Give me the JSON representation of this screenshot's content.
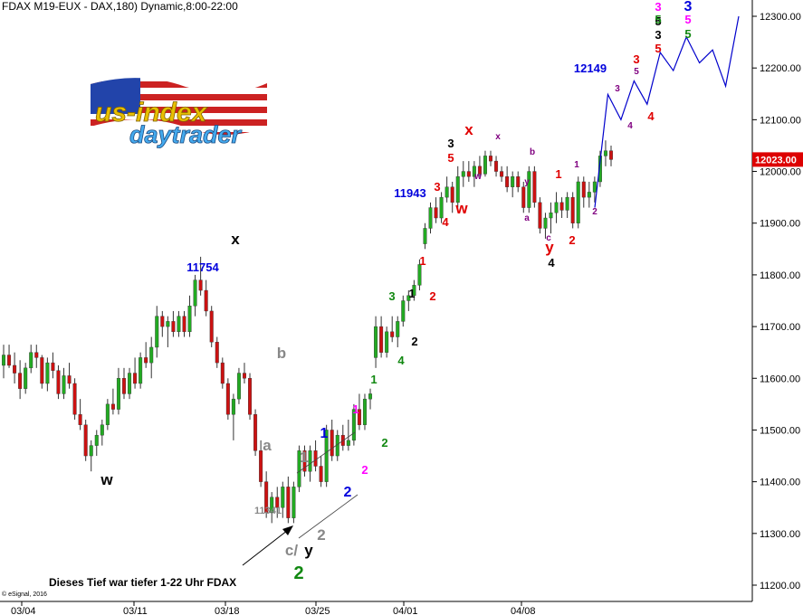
{
  "header": {
    "title": "FDAX M19-EUX - DAX,180) Dynamic,8:00-22:00"
  },
  "logo": {
    "line1": "us-index",
    "line2": "daytrader"
  },
  "footer": {
    "copyright": "© eSignal, 2016",
    "note": "Dieses Tief war tiefer 1-22 Uhr FDAX"
  },
  "colors": {
    "up": "#22aa22",
    "down": "#cc1111",
    "wick": "#333333",
    "forecast": "#0000cc",
    "price_box": "#dd0000",
    "red": "#e00000",
    "green": "#118811",
    "blue": "#0000dd",
    "magenta": "#ff00ff",
    "purple": "#800080",
    "gray": "#888888",
    "black": "#000000"
  },
  "chart_data": {
    "type": "candlestick",
    "ylim": [
      11200,
      12300
    ],
    "y_ticks": [
      "11200.00",
      "11300.00",
      "11400.00",
      "11500.00",
      "11600.00",
      "11700.00",
      "11800.00",
      "11900.00",
      "12000.00",
      "12100.00",
      "12200.00",
      "12300.00"
    ],
    "x_ticks": [
      "03/04",
      "03/11",
      "03/18",
      "03/25",
      "04/01",
      "04/08"
    ],
    "last_price": "12023.00",
    "candles": [
      [
        11625,
        11665,
        11600,
        11645
      ],
      [
        11645,
        11665,
        11620,
        11625
      ],
      [
        11625,
        11650,
        11590,
        11610
      ],
      [
        11610,
        11635,
        11560,
        11580
      ],
      [
        11580,
        11630,
        11570,
        11620
      ],
      [
        11620,
        11665,
        11610,
        11650
      ],
      [
        11650,
        11665,
        11620,
        11640
      ],
      [
        11640,
        11645,
        11580,
        11590
      ],
      [
        11590,
        11640,
        11575,
        11630
      ],
      [
        11630,
        11650,
        11600,
        11615
      ],
      [
        11615,
        11625,
        11560,
        11570
      ],
      [
        11570,
        11620,
        11560,
        11605
      ],
      [
        11605,
        11630,
        11580,
        11590
      ],
      [
        11590,
        11600,
        11520,
        11530
      ],
      [
        11530,
        11560,
        11500,
        11510
      ],
      [
        11510,
        11520,
        11440,
        11450
      ],
      [
        11450,
        11480,
        11420,
        11470
      ],
      [
        11470,
        11500,
        11450,
        11490
      ],
      [
        11490,
        11520,
        11470,
        11510
      ],
      [
        11510,
        11560,
        11500,
        11550
      ],
      [
        11550,
        11580,
        11530,
        11540
      ],
      [
        11540,
        11620,
        11530,
        11600
      ],
      [
        11600,
        11620,
        11560,
        11570
      ],
      [
        11570,
        11620,
        11560,
        11610
      ],
      [
        11610,
        11640,
        11580,
        11590
      ],
      [
        11590,
        11650,
        11580,
        11640
      ],
      [
        11640,
        11670,
        11620,
        11630
      ],
      [
        11630,
        11680,
        11600,
        11660
      ],
      [
        11660,
        11740,
        11640,
        11720
      ],
      [
        11720,
        11730,
        11680,
        11700
      ],
      [
        11700,
        11720,
        11660,
        11710
      ],
      [
        11710,
        11730,
        11680,
        11690
      ],
      [
        11690,
        11730,
        11680,
        11720
      ],
      [
        11720,
        11730,
        11680,
        11690
      ],
      [
        11690,
        11760,
        11680,
        11740
      ],
      [
        11740,
        11800,
        11720,
        11790
      ],
      [
        11790,
        11835,
        11760,
        11770
      ],
      [
        11770,
        11790,
        11720,
        11730
      ],
      [
        11730,
        11740,
        11660,
        11670
      ],
      [
        11670,
        11680,
        11620,
        11630
      ],
      [
        11630,
        11640,
        11580,
        11590
      ],
      [
        11590,
        11600,
        11520,
        11530
      ],
      [
        11530,
        11570,
        11480,
        11560
      ],
      [
        11560,
        11620,
        11550,
        11610
      ],
      [
        11610,
        11630,
        11590,
        11600
      ],
      [
        11600,
        11610,
        11520,
        11530
      ],
      [
        11530,
        11540,
        11450,
        11460
      ],
      [
        11460,
        11480,
        11390,
        11400
      ],
      [
        11400,
        11420,
        11330,
        11340
      ],
      [
        11340,
        11380,
        11320,
        11370
      ],
      [
        11370,
        11390,
        11330,
        11350
      ],
      [
        11350,
        11400,
        11330,
        11390
      ],
      [
        11390,
        11410,
        11320,
        11330
      ],
      [
        11330,
        11400,
        11320,
        11390
      ],
      [
        11390,
        11470,
        11380,
        11460
      ],
      [
        11460,
        11470,
        11410,
        11420
      ],
      [
        11420,
        11470,
        11400,
        11460
      ],
      [
        11460,
        11480,
        11420,
        11430
      ],
      [
        11430,
        11450,
        11390,
        11400
      ],
      [
        11400,
        11510,
        11390,
        11500
      ],
      [
        11500,
        11520,
        11440,
        11450
      ],
      [
        11450,
        11500,
        11440,
        11490
      ],
      [
        11490,
        11510,
        11460,
        11470
      ],
      [
        11470,
        11520,
        11460,
        11480
      ],
      [
        11480,
        11550,
        11470,
        11540
      ],
      [
        11540,
        11570,
        11500,
        11510
      ],
      [
        11510,
        11570,
        11500,
        11560
      ],
      [
        11560,
        11580,
        11540,
        11570
      ],
      [
        11640,
        11720,
        11620,
        11700
      ],
      [
        11700,
        11720,
        11640,
        11650
      ],
      [
        11650,
        11700,
        11640,
        11690
      ],
      [
        11690,
        11720,
        11670,
        11680
      ],
      [
        11680,
        11720,
        11660,
        11710
      ],
      [
        11710,
        11760,
        11700,
        11750
      ],
      [
        11750,
        11770,
        11730,
        11760
      ],
      [
        11760,
        11790,
        11750,
        11780
      ],
      [
        11780,
        11830,
        11770,
        11820
      ],
      [
        11860,
        11900,
        11850,
        11890
      ],
      [
        11890,
        11940,
        11880,
        11930
      ],
      [
        11930,
        11950,
        11900,
        11910
      ],
      [
        11910,
        11960,
        11900,
        11950
      ],
      [
        11950,
        11990,
        11940,
        11970
      ],
      [
        11970,
        11980,
        11920,
        11940
      ],
      [
        11940,
        12010,
        11930,
        11990
      ],
      [
        11990,
        12020,
        11970,
        12000
      ],
      [
        12000,
        12020,
        11980,
        11990
      ],
      [
        11990,
        12020,
        11970,
        12010
      ],
      [
        12010,
        12030,
        11990,
        11995
      ],
      [
        11995,
        12040,
        11990,
        12030
      ],
      [
        12030,
        12040,
        12010,
        12020
      ],
      [
        12020,
        12030,
        11990,
        12000
      ],
      [
        12000,
        12010,
        11980,
        11990
      ],
      [
        11990,
        12010,
        11960,
        11970
      ],
      [
        11970,
        12000,
        11950,
        11990
      ],
      [
        11990,
        12000,
        11960,
        11970
      ],
      [
        11970,
        11980,
        11920,
        11930
      ],
      [
        11930,
        12010,
        11920,
        12000
      ],
      [
        12000,
        12010,
        11930,
        11940
      ],
      [
        11940,
        11950,
        11880,
        11890
      ],
      [
        11890,
        11920,
        11870,
        11910
      ],
      [
        11910,
        11940,
        11880,
        11920
      ],
      [
        11920,
        11960,
        11900,
        11940
      ],
      [
        11940,
        11950,
        11910,
        11925
      ],
      [
        11925,
        11960,
        11910,
        11950
      ],
      [
        11950,
        11960,
        11890,
        11900
      ],
      [
        11900,
        11990,
        11890,
        11980
      ],
      [
        11980,
        11990,
        11930,
        11950
      ],
      [
        11950,
        11980,
        11930,
        11960
      ],
      [
        11960,
        11990,
        11940,
        11980
      ],
      [
        11980,
        12040,
        11970,
        12030
      ],
      [
        12030,
        12060,
        12010,
        12040
      ],
      [
        12040,
        12050,
        12010,
        12023
      ]
    ],
    "forecast": [
      [
        11930,
        0
      ],
      [
        12149,
        1
      ],
      [
        12100,
        2
      ],
      [
        12175,
        3
      ],
      [
        12130,
        4
      ],
      [
        12230,
        5
      ],
      [
        12195,
        6
      ],
      [
        12260,
        7
      ],
      [
        12210,
        8
      ],
      [
        12235,
        9
      ],
      [
        12165,
        10
      ],
      [
        12300,
        11
      ]
    ],
    "annotations": [
      {
        "t": "11754",
        "c": "blue",
        "x": 224,
        "y": 300
      },
      {
        "t": "x",
        "c": "black",
        "x": 260,
        "y": 270
      },
      {
        "t": "b",
        "c": "gray",
        "x": 311,
        "y": 396
      },
      {
        "t": "a",
        "c": "gray",
        "x": 295,
        "y": 498
      },
      {
        "t": "w",
        "c": "black",
        "x": 118,
        "y": 536
      },
      {
        "t": "1",
        "c": "gray",
        "x": 336,
        "y": 511
      },
      {
        "t": "11341",
        "c": "gray",
        "x": 296,
        "y": 568,
        "s": "small"
      },
      {
        "t": "2",
        "c": "gray",
        "x": 355,
        "y": 597
      },
      {
        "t": "c/",
        "c": "gray",
        "x": 322,
        "y": 614
      },
      {
        "t": "y",
        "c": "black",
        "x": 341,
        "y": 614
      },
      {
        "t": "2",
        "c": "green",
        "x": 330,
        "y": 640
      },
      {
        "t": "1",
        "c": "blue",
        "x": 358,
        "y": 484
      },
      {
        "t": "2",
        "c": "blue",
        "x": 384,
        "y": 549
      },
      {
        "t": "1",
        "c": "magenta",
        "x": 393,
        "y": 457
      },
      {
        "t": "2",
        "c": "magenta",
        "x": 403,
        "y": 524
      },
      {
        "t": "1",
        "c": "green",
        "x": 413,
        "y": 424
      },
      {
        "t": "2",
        "c": "green",
        "x": 425,
        "y": 494
      },
      {
        "t": "3",
        "c": "green",
        "x": 433,
        "y": 332
      },
      {
        "t": "4",
        "c": "green",
        "x": 443,
        "y": 403
      },
      {
        "t": "1",
        "c": "black",
        "x": 455,
        "y": 329
      },
      {
        "t": "2",
        "c": "black",
        "x": 458,
        "y": 382
      },
      {
        "t": "1",
        "c": "red",
        "x": 467,
        "y": 293
      },
      {
        "t": "2",
        "c": "red",
        "x": 478,
        "y": 332
      },
      {
        "t": "11943",
        "c": "blue",
        "x": 453,
        "y": 218
      },
      {
        "t": "3",
        "c": "red",
        "x": 483,
        "y": 211
      },
      {
        "t": "4",
        "c": "red",
        "x": 492,
        "y": 250
      },
      {
        "t": "3",
        "c": "black",
        "x": 498,
        "y": 163
      },
      {
        "t": "5",
        "c": "red",
        "x": 498,
        "y": 179
      },
      {
        "t": "w",
        "c": "red",
        "x": 510,
        "y": 236
      },
      {
        "t": "x",
        "c": "red",
        "x": 518,
        "y": 149
      },
      {
        "t": "w",
        "c": "purple",
        "x": 528,
        "y": 198,
        "s": "small"
      },
      {
        "t": "x",
        "c": "purple",
        "x": 550,
        "y": 154,
        "s": "small"
      },
      {
        "t": "b",
        "c": "purple",
        "x": 588,
        "y": 171,
        "s": "small"
      },
      {
        "t": "y",
        "c": "purple",
        "x": 582,
        "y": 204,
        "s": "small"
      },
      {
        "t": "a",
        "c": "purple",
        "x": 582,
        "y": 244,
        "s": "small"
      },
      {
        "t": "c",
        "c": "purple",
        "x": 606,
        "y": 266,
        "s": "small"
      },
      {
        "t": "y",
        "c": "red",
        "x": 607,
        "y": 279
      },
      {
        "t": "4",
        "c": "black",
        "x": 609,
        "y": 295
      },
      {
        "t": "1",
        "c": "red",
        "x": 617,
        "y": 197
      },
      {
        "t": "2",
        "c": "red",
        "x": 632,
        "y": 270
      },
      {
        "t": "1",
        "c": "purple",
        "x": 637,
        "y": 185,
        "s": "small"
      },
      {
        "t": "2",
        "c": "purple",
        "x": 657,
        "y": 237,
        "s": "small"
      },
      {
        "t": "12149",
        "c": "blue",
        "x": 652,
        "y": 80
      },
      {
        "t": "3",
        "c": "purple",
        "x": 682,
        "y": 101,
        "s": "small"
      },
      {
        "t": "4",
        "c": "purple",
        "x": 696,
        "y": 142,
        "s": "small"
      },
      {
        "t": "3",
        "c": "red",
        "x": 703,
        "y": 70
      },
      {
        "t": "5",
        "c": "purple",
        "x": 703,
        "y": 82,
        "s": "small"
      },
      {
        "t": "4",
        "c": "red",
        "x": 719,
        "y": 133
      },
      {
        "t": "3",
        "c": "black",
        "x": 727,
        "y": 43
      },
      {
        "t": "5",
        "c": "red",
        "x": 727,
        "y": 58
      },
      {
        "t": "5",
        "c": "black",
        "x": 727,
        "y": 28
      },
      {
        "t": "5",
        "c": "green",
        "x": 727,
        "y": 26
      },
      {
        "t": "3",
        "c": "magenta",
        "x": 727,
        "y": 12
      },
      {
        "t": "3",
        "c": "blue",
        "x": 760,
        "y": 12
      },
      {
        "t": "5",
        "c": "magenta",
        "x": 760,
        "y": 26
      },
      {
        "t": "5",
        "c": "green",
        "x": 760,
        "y": 42
      }
    ]
  }
}
